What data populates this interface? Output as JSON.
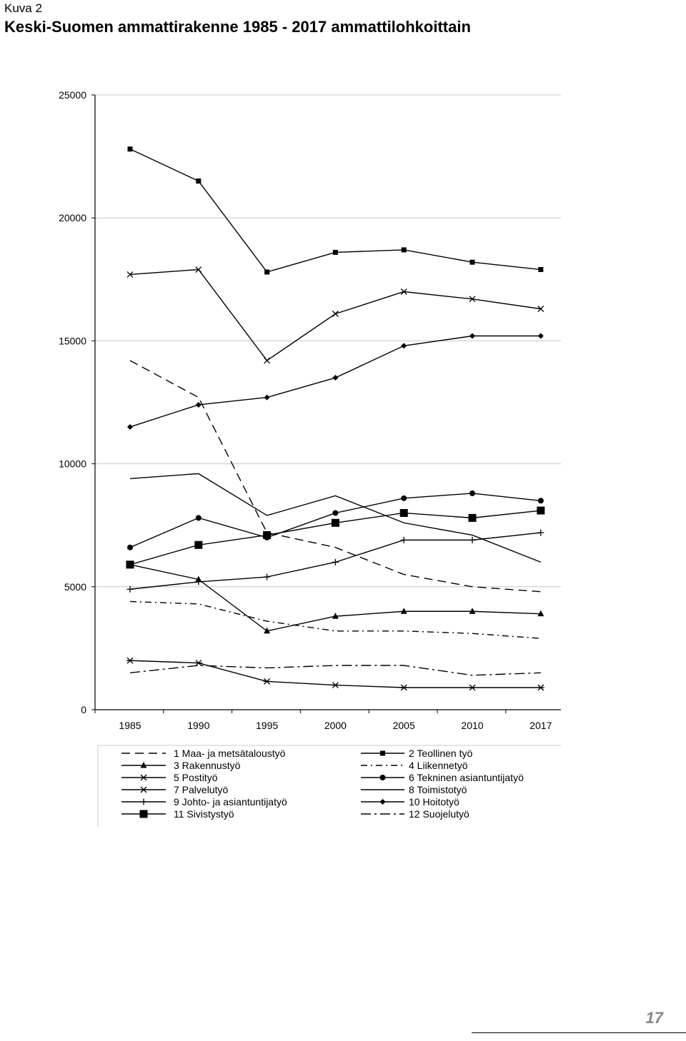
{
  "header": {
    "label": "Kuva 2",
    "title": "Keski-Suomen ammattirakenne 1985 - 2017 ammattilohkoittain"
  },
  "footer": {
    "page_number": "17"
  },
  "chart_data": {
    "type": "line",
    "title": "Keski-Suomen ammattirakenne 1985 - 2017 ammattilohkoittain",
    "xlabel": "",
    "ylabel": "",
    "categories": [
      "1985",
      "1990",
      "1995",
      "2000",
      "2005",
      "2010",
      "2017"
    ],
    "ylim": [
      0,
      25000
    ],
    "yticks": [
      0,
      5000,
      10000,
      15000,
      20000,
      25000
    ],
    "grid": "horizontal",
    "legend_position": "bottom",
    "series": [
      {
        "name": "1 Maa- ja metsätaloustyö",
        "values": [
          14200,
          12700,
          7200,
          6600,
          5500,
          5000,
          4800
        ],
        "line": "dashed",
        "marker": "none"
      },
      {
        "name": "2 Teollinen työ",
        "values": [
          22800,
          21500,
          17800,
          18600,
          18700,
          18200,
          17900
        ],
        "line": "solid",
        "marker": "square-small"
      },
      {
        "name": "3 Rakennustyö",
        "values": [
          5900,
          5300,
          3200,
          3800,
          4000,
          4000,
          3900
        ],
        "line": "solid",
        "marker": "triangle"
      },
      {
        "name": "4 Liikennetyö",
        "values": [
          4400,
          4300,
          3600,
          3200,
          3200,
          3100,
          2900
        ],
        "line": "dashdot",
        "marker": "none"
      },
      {
        "name": "5 Postityö",
        "values": [
          2000,
          1900,
          1150,
          1000,
          900,
          900,
          900
        ],
        "line": "solid",
        "marker": "star"
      },
      {
        "name": "6 Tekninen asiantuntijatyö",
        "values": [
          6600,
          7800,
          7000,
          8000,
          8600,
          8800,
          8500
        ],
        "line": "solid",
        "marker": "circle"
      },
      {
        "name": "7 Palvelutyö",
        "values": [
          17700,
          17900,
          14200,
          16100,
          17000,
          16700,
          16300
        ],
        "line": "solid",
        "marker": "x"
      },
      {
        "name": "8 Toimistotyö",
        "values": [
          9400,
          9600,
          7900,
          8700,
          7600,
          7100,
          6000
        ],
        "line": "solid",
        "marker": "none"
      },
      {
        "name": "9 Johto- ja asiantuntijatyö",
        "values": [
          4900,
          5200,
          5400,
          6000,
          6900,
          6900,
          7200
        ],
        "line": "solid",
        "marker": "plus"
      },
      {
        "name": "10 Hoitotyö",
        "values": [
          11500,
          12400,
          12700,
          13500,
          14800,
          15200,
          15200
        ],
        "line": "solid",
        "marker": "diamond"
      },
      {
        "name": "11 Sivistystyö",
        "values": [
          5900,
          6700,
          7100,
          7600,
          8000,
          7800,
          8100
        ],
        "line": "solid",
        "marker": "square-large"
      },
      {
        "name": "12 Suojelutyö",
        "values": [
          1500,
          1800,
          1700,
          1800,
          1800,
          1400,
          1500
        ],
        "line": "longdashdot",
        "marker": "none"
      }
    ]
  }
}
